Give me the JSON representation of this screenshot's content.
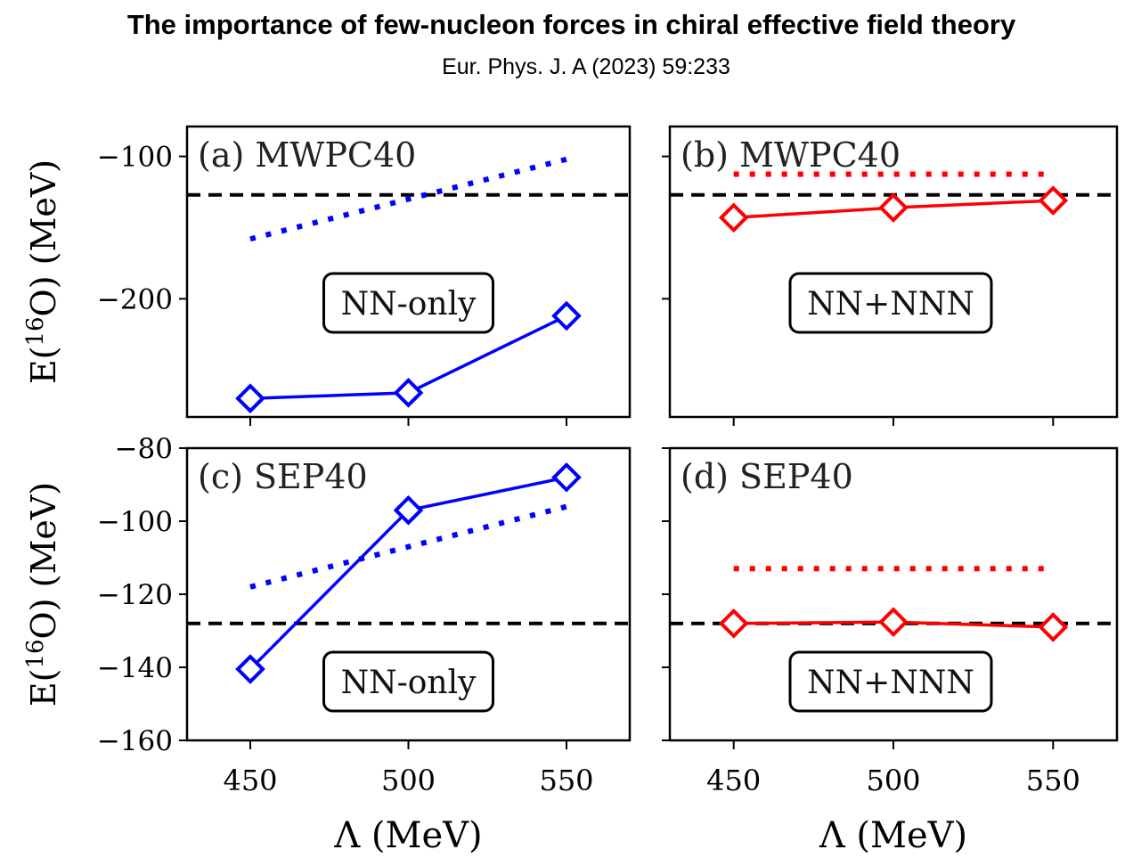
{
  "header": {
    "title": "The importance of few-nucleon forces in chiral effective field theory",
    "subtitle": "Eur. Phys. J. A (2023) 59:233"
  },
  "colors": {
    "nn_only": "#0000ff",
    "nn_nnn": "#ff0000",
    "reference": "#000000"
  },
  "chart_data": [
    {
      "type": "line",
      "panel": "a",
      "label": "(a) MWPC40",
      "box_label": "NN-only",
      "color": "#0000ff",
      "x": [
        450,
        500,
        550
      ],
      "xlim": [
        430,
        570
      ],
      "ylim": [
        -283,
        -79
      ],
      "yticks": [
        -100,
        -200
      ],
      "ytick_labels": [
        "−100",
        "−200"
      ],
      "ylabel": "E(16O) (MeV)",
      "xlabel": "",
      "xtick_labels": [],
      "series": [
        {
          "name": "solid-diamond",
          "style": "solid",
          "marker": "diamond",
          "values": [
            -270,
            -266,
            -212
          ]
        },
        {
          "name": "dotted",
          "style": "dotted",
          "marker": "none",
          "values": [
            -158,
            -130,
            -102
          ]
        }
      ],
      "reference_line": -127
    },
    {
      "type": "line",
      "panel": "b",
      "label": "(b) MWPC40",
      "box_label": "NN+NNN",
      "color": "#ff0000",
      "x": [
        450,
        500,
        550
      ],
      "xlim": [
        430,
        570
      ],
      "ylim": [
        -283,
        -79
      ],
      "yticks": [
        -100,
        -200
      ],
      "ytick_labels": [],
      "ylabel": "",
      "xlabel": "",
      "xtick_labels": [],
      "series": [
        {
          "name": "solid-diamond",
          "style": "solid",
          "marker": "diamond",
          "values": [
            -143,
            -136,
            -131
          ]
        },
        {
          "name": "dotted",
          "style": "dotted",
          "marker": "none",
          "values": [
            -112.5,
            -112.5,
            -112.5
          ]
        }
      ],
      "reference_line": -127
    },
    {
      "type": "line",
      "panel": "c",
      "label": "(c) SEP40",
      "box_label": "NN-only",
      "color": "#0000ff",
      "x": [
        450,
        500,
        550
      ],
      "xlim": [
        430,
        570
      ],
      "ylim": [
        -160,
        -80
      ],
      "yticks": [
        -80,
        -100,
        -120,
        -140,
        -160
      ],
      "ytick_labels": [
        "−80",
        "−100",
        "−120",
        "−140",
        "−160"
      ],
      "ylabel": "E(16O) (MeV)",
      "xlabel": "Λ (MeV)",
      "xtick_labels": [
        "450",
        "500",
        "550"
      ],
      "series": [
        {
          "name": "solid-diamond",
          "style": "solid",
          "marker": "diamond",
          "values": [
            -140.5,
            -97,
            -88
          ]
        },
        {
          "name": "dotted",
          "style": "dotted",
          "marker": "none",
          "values": [
            -118,
            -107,
            -96
          ]
        }
      ],
      "reference_line": -128
    },
    {
      "type": "line",
      "panel": "d",
      "label": "(d) SEP40",
      "box_label": "NN+NNN",
      "color": "#ff0000",
      "x": [
        450,
        500,
        550
      ],
      "xlim": [
        430,
        570
      ],
      "ylim": [
        -160,
        -80
      ],
      "yticks": [
        -80,
        -100,
        -120,
        -140,
        -160
      ],
      "ytick_labels": [],
      "ylabel": "",
      "xlabel": "Λ (MeV)",
      "xtick_labels": [
        "450",
        "500",
        "550"
      ],
      "series": [
        {
          "name": "solid-diamond",
          "style": "solid",
          "marker": "diamond",
          "values": [
            -128,
            -127.6,
            -129
          ]
        },
        {
          "name": "dotted",
          "style": "dotted",
          "marker": "none",
          "values": [
            -113,
            -113,
            -113
          ]
        }
      ],
      "reference_line": -128
    }
  ]
}
